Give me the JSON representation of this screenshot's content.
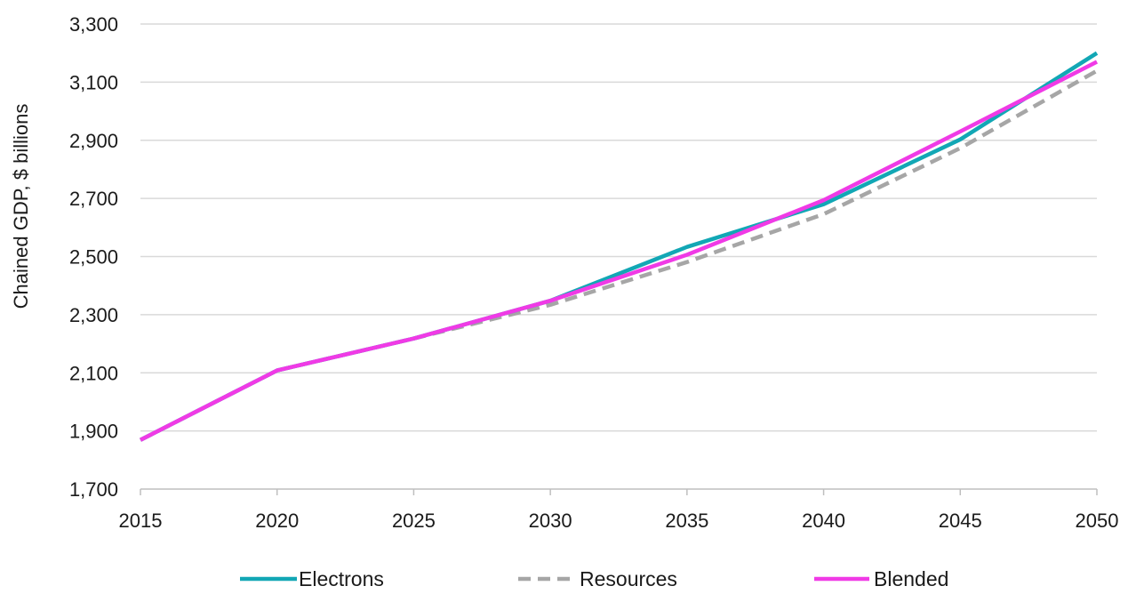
{
  "chart_data": {
    "type": "line",
    "ylabel": "Chained GDP, $ billions",
    "xlabel": "",
    "x": [
      2015,
      2020,
      2025,
      2030,
      2035,
      2040,
      2045,
      2050
    ],
    "xticks": [
      "2015",
      "2020",
      "2025",
      "2030",
      "2035",
      "2040",
      "2045",
      "2050"
    ],
    "ylim": [
      1700,
      3300
    ],
    "yticks": [
      "1,700",
      "1,900",
      "2,100",
      "2,300",
      "2,500",
      "2,700",
      "2,900",
      "3,100",
      "3,300"
    ],
    "ytick_values": [
      1700,
      1900,
      2100,
      2300,
      2500,
      2700,
      2900,
      3100,
      3300
    ],
    "grid": true,
    "legend_position": "bottom",
    "series": [
      {
        "name": "Electrons",
        "values": [
          1869,
          2108,
          2218,
          2348,
          2533,
          2680,
          2903,
          3200
        ],
        "color": "#12a7b5",
        "dash": "solid"
      },
      {
        "name": "Resources",
        "values": [
          1869,
          2108,
          2218,
          2334,
          2481,
          2646,
          2873,
          3139
        ],
        "color": "#a6a6a6",
        "dash": "dashed"
      },
      {
        "name": "Blended",
        "values": [
          1869,
          2108,
          2218,
          2348,
          2506,
          2694,
          2930,
          3170
        ],
        "color": "#f03ae6",
        "dash": "solid"
      }
    ]
  }
}
